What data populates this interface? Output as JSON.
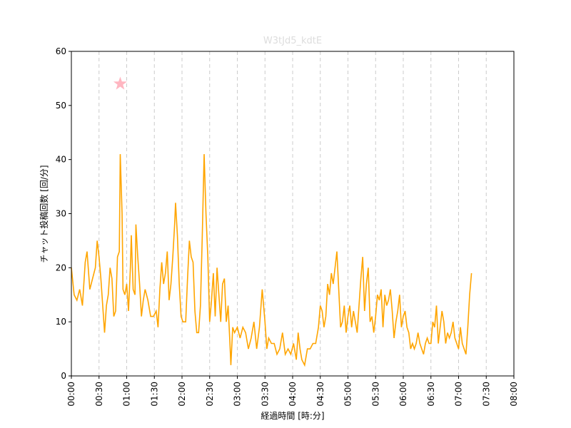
{
  "chart_data": {
    "type": "line",
    "title": "W3tJd5_kdtE",
    "xlabel": "経過時間 [時:分]",
    "ylabel": "チャット投稿回数 [回/分]",
    "x": [
      0,
      3,
      6,
      9,
      12,
      15,
      17,
      20,
      23,
      26,
      28,
      30,
      32,
      34,
      36,
      38,
      40,
      42,
      44,
      46,
      48,
      50,
      52,
      53,
      55,
      56,
      58,
      60,
      62,
      64,
      65,
      67,
      69,
      70,
      72,
      74,
      76,
      78,
      80,
      83,
      86,
      89,
      92,
      94,
      96,
      98,
      100,
      102,
      104,
      106,
      108,
      110,
      112,
      113,
      115,
      117,
      119,
      121,
      124,
      126,
      128,
      130,
      132,
      134,
      136,
      138,
      140,
      142,
      144,
      146,
      148,
      150,
      152,
      154,
      156,
      158,
      160,
      162,
      164,
      166,
      168,
      170,
      172,
      173,
      175,
      177,
      180,
      183,
      186,
      189,
      192,
      195,
      198,
      201,
      204,
      207,
      210,
      212,
      214,
      217,
      220,
      223,
      226,
      229,
      232,
      235,
      238,
      241,
      244,
      246,
      248,
      250,
      253,
      256,
      259,
      262,
      265,
      268,
      270,
      272,
      274,
      276,
      278,
      280,
      282,
      284,
      286,
      288,
      290,
      292,
      294,
      296,
      298,
      300,
      302,
      304,
      306,
      308,
      310,
      312,
      314,
      316,
      318,
      320,
      322,
      324,
      326,
      328,
      330,
      332,
      334,
      336,
      338,
      340,
      342,
      344,
      346,
      348,
      350,
      352,
      354,
      356,
      358,
      360,
      362,
      364,
      366,
      368,
      370,
      372,
      374,
      376,
      378,
      380,
      382,
      384,
      386,
      388,
      390,
      392,
      394,
      396,
      398,
      400,
      402,
      404,
      406,
      408,
      410,
      412,
      414,
      416,
      418,
      420,
      422,
      424,
      426,
      428,
      430,
      432,
      434
    ],
    "series": [
      {
        "name": "チャット投稿回数",
        "color": "#ffa500",
        "values": [
          20,
          15,
          14,
          16,
          13,
          21,
          23,
          16,
          18,
          20,
          25,
          22,
          18,
          13,
          8,
          13,
          15,
          20,
          18,
          11,
          12,
          22,
          23,
          41,
          30,
          16,
          15,
          17,
          12,
          20,
          26,
          16,
          15,
          28,
          22,
          17,
          11,
          14,
          16,
          14,
          11,
          11,
          12,
          9,
          16,
          21,
          17,
          19,
          23,
          14,
          17,
          22,
          28,
          32,
          26,
          17,
          11,
          10,
          10,
          18,
          25,
          22,
          21,
          12,
          8,
          8,
          13,
          26,
          41,
          30,
          22,
          10,
          14,
          19,
          11,
          20,
          15,
          10,
          17,
          18,
          10,
          13,
          6,
          2,
          9,
          8,
          9,
          7,
          9,
          8,
          5,
          7,
          10,
          5,
          9,
          16,
          10,
          5,
          7,
          6,
          6,
          4,
          5,
          8,
          4,
          5,
          4,
          6,
          3,
          8,
          5,
          3,
          2,
          5,
          5,
          6,
          6,
          9,
          13,
          12,
          9,
          11,
          17,
          15,
          19,
          17,
          20,
          23,
          16,
          9,
          10,
          13,
          8,
          11,
          13,
          9,
          12,
          10,
          8,
          13,
          18,
          22,
          12,
          17,
          20,
          10,
          11,
          8,
          11,
          15,
          14,
          16,
          9,
          15,
          13,
          14,
          16,
          12,
          7,
          10,
          12,
          15,
          9,
          11,
          12,
          9,
          8,
          5,
          6,
          5,
          6,
          8,
          6,
          5,
          4,
          6,
          7,
          6,
          6,
          10,
          9,
          13,
          6,
          9,
          12,
          10,
          6,
          8,
          7,
          8,
          10,
          7,
          6,
          5,
          9,
          6,
          5,
          4,
          9,
          15,
          19
        ]
      }
    ],
    "markers": [
      {
        "x": 53,
        "y": 54,
        "color": "#ffb6c1"
      }
    ],
    "xlim": [
      0,
      480
    ],
    "xticks": [
      {
        "value": 0,
        "label": "00:00"
      },
      {
        "value": 30,
        "label": "00:30"
      },
      {
        "value": 60,
        "label": "01:00"
      },
      {
        "value": 90,
        "label": "01:30"
      },
      {
        "value": 120,
        "label": "02:00"
      },
      {
        "value": 150,
        "label": "02:30"
      },
      {
        "value": 180,
        "label": "03:00"
      },
      {
        "value": 210,
        "label": "03:30"
      },
      {
        "value": 240,
        "label": "04:00"
      },
      {
        "value": 270,
        "label": "04:30"
      },
      {
        "value": 300,
        "label": "05:00"
      },
      {
        "value": 330,
        "label": "05:30"
      },
      {
        "value": 360,
        "label": "06:00"
      },
      {
        "value": 390,
        "label": "06:30"
      },
      {
        "value": 420,
        "label": "07:00"
      },
      {
        "value": 450,
        "label": "07:30"
      },
      {
        "value": 480,
        "label": "08:00"
      }
    ],
    "ylim": [
      0,
      60
    ],
    "yticks": [
      0,
      10,
      20,
      30,
      40,
      50,
      60
    ],
    "grid": "x"
  }
}
